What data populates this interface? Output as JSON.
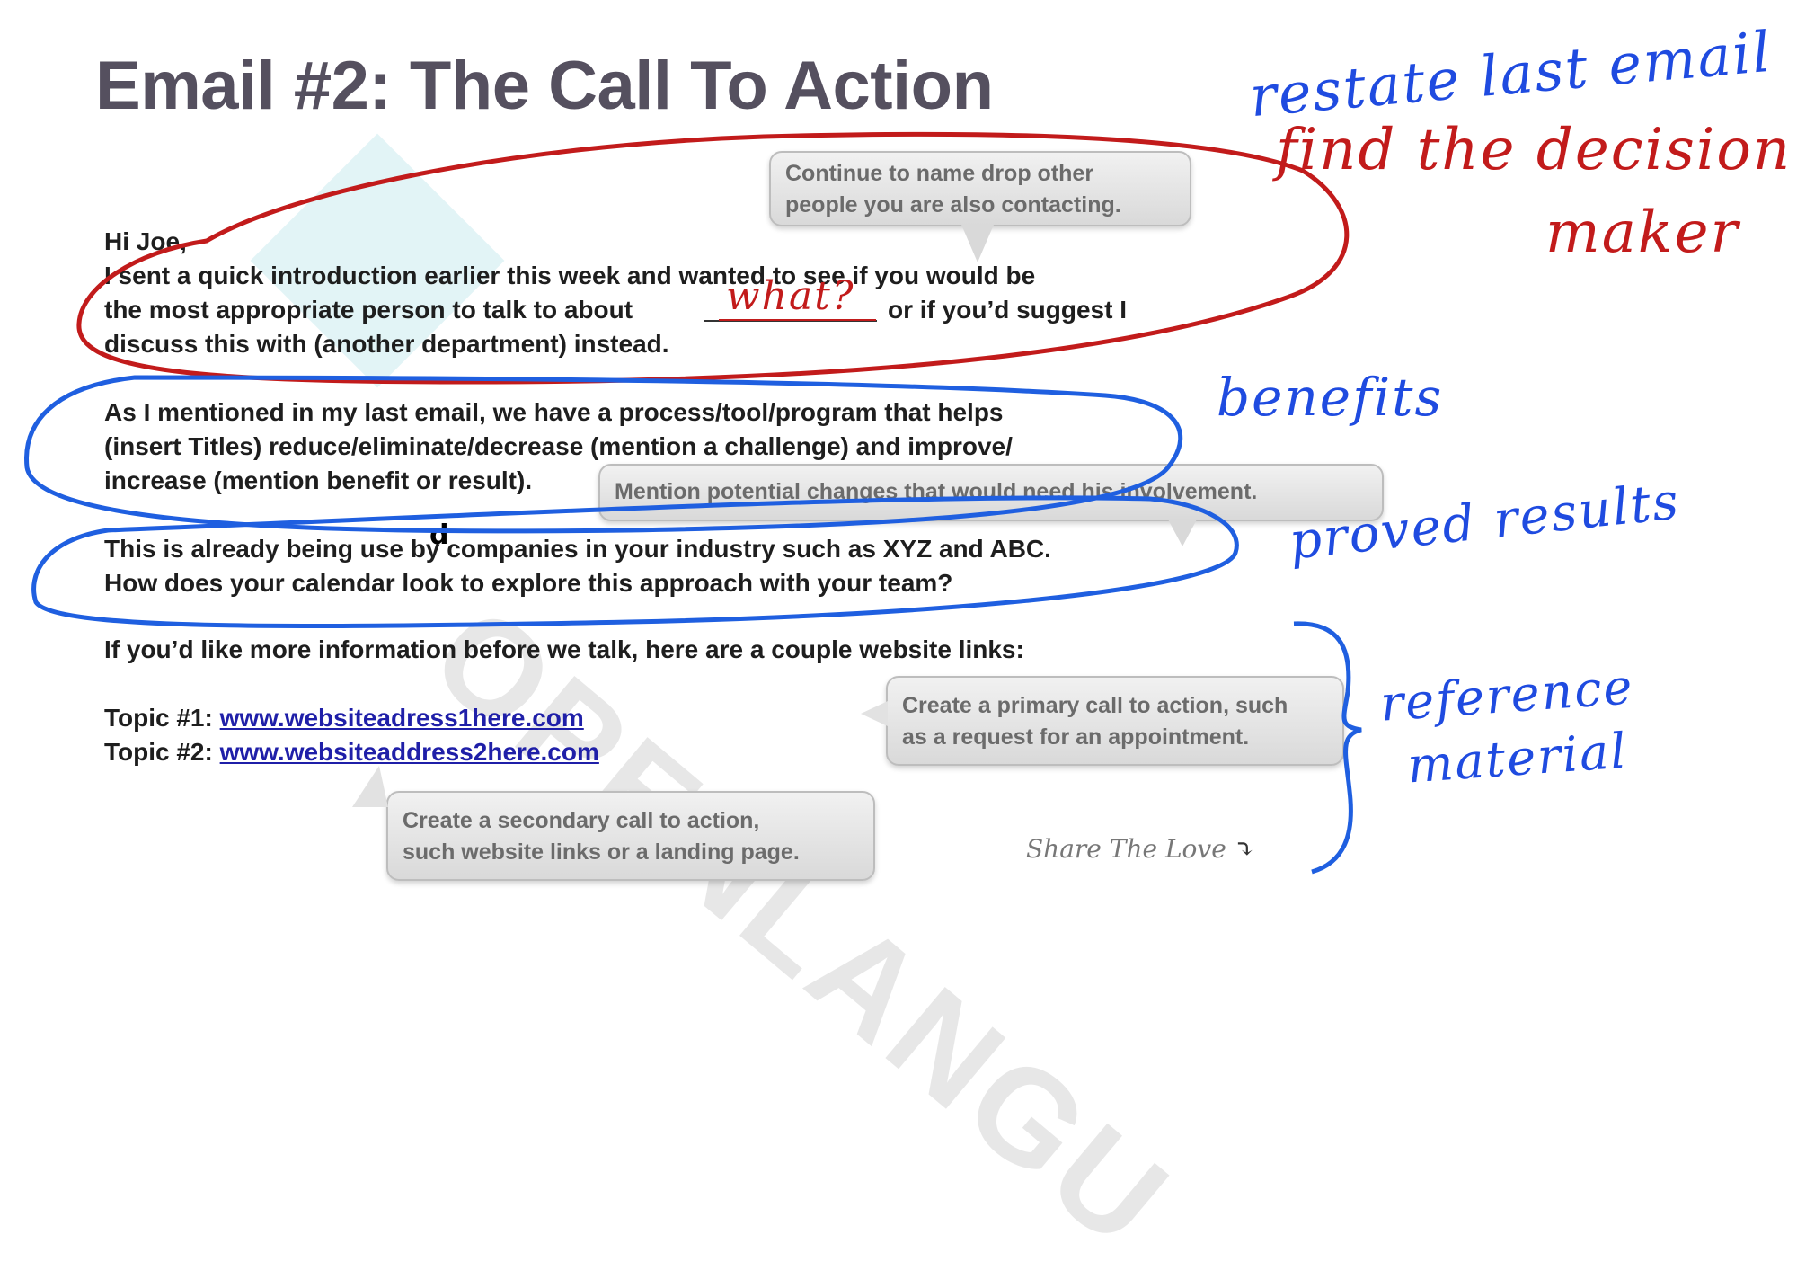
{
  "title": "Email #2: The Call To Action",
  "email": {
    "greeting": "Hi Joe,",
    "p1": [
      "I sent a quick introduction earlier this week and wanted to see if you would be",
      "the most appropriate person to talk to about",
      "or if you’d suggest I",
      "discuss this with (another department) instead."
    ],
    "p2": [
      "As I mentioned in my last email, we have a process/tool/program that helps",
      "(insert Titles) reduce/eliminate/decrease (mention a challenge) and improve/",
      "increase (mention benefit or result)."
    ],
    "p3": [
      "This is already being use",
      "by companies in your industry such as XYZ and ABC.",
      "How does your calendar look to explore this approach with your team?"
    ],
    "p4": "If you’d like more information before we talk, here are a couple website links:",
    "topic1_label": "Topic #1:",
    "topic1_link": "www.websiteadress1here.com",
    "topic2_label": "Topic #2:",
    "topic2_link": "www.websiteaddress2here.com"
  },
  "callouts": {
    "name_drop": [
      "Continue to name drop other",
      "people you are also contacting."
    ],
    "changes": "Mention potential changes that would need his involvement.",
    "primary_cta": [
      "Create a primary call to action, such",
      "as a request for an appointment."
    ],
    "secondary_cta": [
      "Create a secondary call to action,",
      "such website links or a landing page."
    ]
  },
  "share": "Share The Love",
  "annotations": {
    "restate": "restate last email",
    "find": "find the decision",
    "maker": "maker",
    "what": "what?",
    "d": "d",
    "benefits": "benefits",
    "proved": "proved results",
    "reference": "reference",
    "material": "material"
  },
  "watermark": "OPENLANGU"
}
